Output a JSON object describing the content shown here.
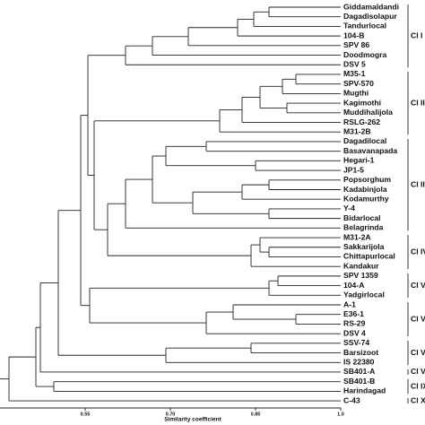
{
  "leaves": [
    "Giddamaldandi",
    "Dagadisolapur",
    "Tandurlocal",
    "104-B",
    "SPV 86",
    "Doodmogra",
    "DSV 5",
    "M35-1",
    "SPV-570",
    "Mugthi",
    "Kagimothi",
    "Muddihalijola",
    "RSLG-262",
    "M31-2B",
    "Dagadilocal",
    "Basavanapada",
    "Hegari-1",
    "JP1-5",
    "Popsorghum",
    "Kadabinjola",
    "Kodamurthy",
    "Y-4",
    "Bidarlocal",
    "Belagrinda",
    "M31-2A",
    "Sakkarijola",
    "Chittapurlocal",
    "Kandakur",
    "SPV 1359",
    "104-A",
    "Yadgirlocal",
    "A-1",
    "E36-1",
    "RS-29",
    "DSV 4",
    "SSV-74",
    "Barsizoot",
    "IS 22380",
    "SB401-A",
    "SB401-B",
    "Harindagad",
    "C-43"
  ],
  "clusters": [
    "Cl I",
    "Cl II",
    "Cl III",
    "Cl IV",
    "Cl V",
    "Cl VI",
    "Cl VII",
    "Cl VIII",
    "Cl IX",
    "Cl X"
  ],
  "axis": {
    "title": "Similarity coefficient",
    "ticks": [
      0.55,
      {
        "value": 0.7,
        "label": "0.70"
      },
      0.85,
      {
        "value": 1,
        "label": "1.0"
      }
    ]
  }
}
